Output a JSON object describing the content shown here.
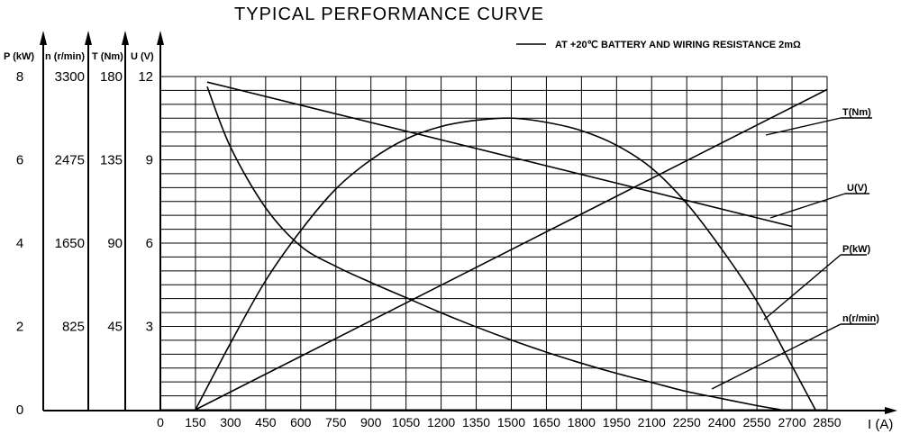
{
  "chart_data": {
    "type": "line",
    "title": "TYPICAL PERFORMANCE CURVE",
    "legend": "AT +20℃   BATTERY AND WIRING RESISTANCE 2mΩ",
    "xlabel": "I (A)",
    "xlim": [
      0,
      2850
    ],
    "x_ticks": [
      "0",
      "150",
      "300",
      "450",
      "600",
      "750",
      "900",
      "1050",
      "1200",
      "1350",
      "1500",
      "1650",
      "1800",
      "1950",
      "2100",
      "2250",
      "2400",
      "2550",
      "2700",
      "2850"
    ],
    "axes": [
      {
        "key": "P",
        "label": "P (kW)",
        "ticks": [
          "8",
          "6",
          "4",
          "2",
          "0"
        ],
        "range": [
          0,
          8
        ]
      },
      {
        "key": "n",
        "label": "n (r/min)",
        "ticks": [
          "3300",
          "2475",
          "1650",
          "825"
        ],
        "range": [
          0,
          3300
        ]
      },
      {
        "key": "T",
        "label": "T (Nm)",
        "ticks": [
          "180",
          "135",
          "90",
          "45"
        ],
        "range": [
          0,
          180
        ]
      },
      {
        "key": "U",
        "label": "U (V)",
        "ticks": [
          "12",
          "9",
          "6",
          "3"
        ],
        "range": [
          0,
          12
        ]
      }
    ],
    "grid": true,
    "series": [
      {
        "name": "T(Nm)",
        "axis": "T",
        "x": [
          150,
          2850
        ],
        "values": [
          0,
          173
        ]
      },
      {
        "name": "U(V)",
        "axis": "U",
        "x": [
          200,
          2700
        ],
        "values": [
          11.8,
          6.6
        ]
      },
      {
        "name": "P(kW)",
        "axis": "P",
        "x": [
          150,
          300,
          450,
          600,
          750,
          900,
          1050,
          1200,
          1350,
          1500,
          1650,
          1800,
          1950,
          2100,
          2250,
          2400,
          2550,
          2700,
          2800
        ],
        "values": [
          0,
          1.6,
          3.1,
          4.3,
          5.3,
          6.0,
          6.5,
          6.8,
          6.95,
          7.0,
          6.9,
          6.7,
          6.35,
          5.8,
          4.95,
          3.85,
          2.6,
          1.05,
          0
        ]
      },
      {
        "name": "n(r/min)",
        "axis": "n",
        "x": [
          200,
          300,
          450,
          600,
          750,
          900,
          1050,
          1200,
          1350,
          1500,
          1650,
          1800,
          1950,
          2100,
          2250,
          2400,
          2550,
          2650
        ],
        "values": [
          3200,
          2600,
          2000,
          1620,
          1420,
          1260,
          1110,
          960,
          820,
          690,
          570,
          460,
          360,
          270,
          180,
          110,
          40,
          0
        ]
      }
    ],
    "curve_labels": [
      "T(Nm)",
      "U(V)",
      "P(kW)",
      "n(r/min)"
    ]
  }
}
